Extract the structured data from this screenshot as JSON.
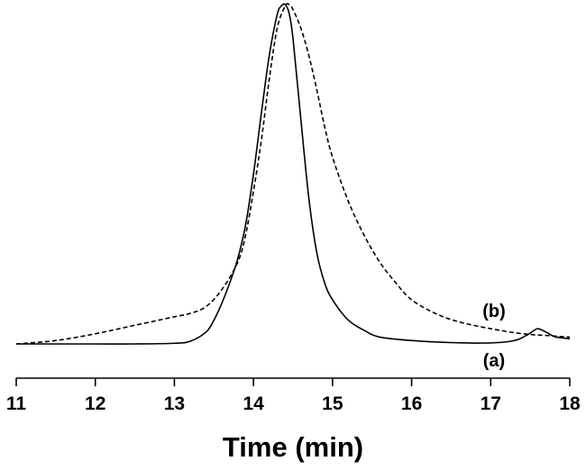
{
  "chart_data": {
    "type": "line",
    "title": "",
    "xlabel": "Time (min)",
    "ylabel": "",
    "xlim": [
      11,
      18
    ],
    "xticks": [
      "11",
      "12",
      "13",
      "14",
      "15",
      "16",
      "17",
      "18"
    ],
    "grid": false,
    "legend": "none",
    "series": [
      {
        "name": "(a)",
        "style": "solid",
        "color": "#000000",
        "x": [
          11.0,
          11.5,
          12.0,
          12.5,
          13.0,
          13.2,
          13.4,
          13.5,
          13.6,
          13.7,
          13.8,
          13.9,
          14.0,
          14.1,
          14.2,
          14.3,
          14.35,
          14.4,
          14.45,
          14.5,
          14.6,
          14.7,
          14.8,
          14.9,
          15.0,
          15.2,
          15.4,
          15.6,
          16.0,
          16.5,
          17.0,
          17.3,
          17.45,
          17.55,
          17.6,
          17.7,
          17.8,
          17.9,
          18.0
        ],
        "y": [
          0.0,
          0.0,
          0.0,
          0.0,
          0.002,
          0.008,
          0.035,
          0.07,
          0.12,
          0.18,
          0.25,
          0.35,
          0.5,
          0.68,
          0.85,
          0.97,
          0.995,
          1.0,
          0.975,
          0.9,
          0.66,
          0.43,
          0.27,
          0.18,
          0.13,
          0.07,
          0.04,
          0.02,
          0.01,
          0.004,
          0.003,
          0.01,
          0.025,
          0.04,
          0.045,
          0.035,
          0.022,
          0.018,
          0.015
        ]
      },
      {
        "name": "(b)",
        "style": "dashed",
        "color": "#000000",
        "x": [
          11.0,
          11.5,
          12.0,
          12.5,
          13.0,
          13.2,
          13.4,
          13.6,
          13.8,
          13.9,
          14.0,
          14.1,
          14.2,
          14.3,
          14.4,
          14.45,
          14.5,
          14.6,
          14.7,
          14.8,
          14.9,
          15.0,
          15.2,
          15.4,
          15.6,
          15.8,
          16.0,
          16.3,
          16.6,
          17.0,
          17.4,
          17.7,
          18.0
        ],
        "y": [
          0.0,
          0.01,
          0.03,
          0.055,
          0.08,
          0.09,
          0.11,
          0.16,
          0.24,
          0.32,
          0.45,
          0.6,
          0.78,
          0.93,
          0.995,
          1.0,
          0.985,
          0.93,
          0.85,
          0.75,
          0.64,
          0.55,
          0.42,
          0.32,
          0.24,
          0.18,
          0.13,
          0.09,
          0.065,
          0.045,
          0.03,
          0.025,
          0.02
        ]
      }
    ]
  }
}
